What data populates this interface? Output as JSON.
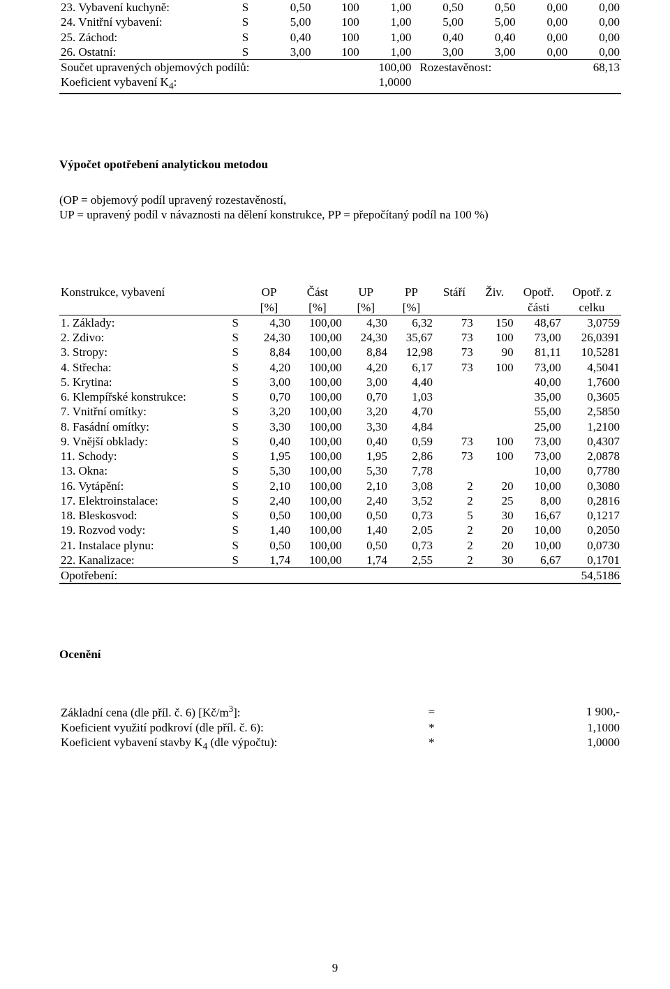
{
  "table1": {
    "rows": [
      {
        "label": "23. Vybavení kuchyně:",
        "code": "S",
        "c1": "0,50",
        "c2": "100",
        "c3": "1,00",
        "c4": "0,50",
        "c5": "0,50",
        "c6": "0,00",
        "c7": "0,00"
      },
      {
        "label": "24. Vnitřní vybavení:",
        "code": "S",
        "c1": "5,00",
        "c2": "100",
        "c3": "1,00",
        "c4": "5,00",
        "c5": "5,00",
        "c6": "0,00",
        "c7": "0,00"
      },
      {
        "label": "25. Záchod:",
        "code": "S",
        "c1": "0,40",
        "c2": "100",
        "c3": "1,00",
        "c4": "0,40",
        "c5": "0,40",
        "c6": "0,00",
        "c7": "0,00"
      },
      {
        "label": "26. Ostatní:",
        "code": "S",
        "c1": "3,00",
        "c2": "100",
        "c3": "1,00",
        "c4": "3,00",
        "c5": "3,00",
        "c6": "0,00",
        "c7": "0,00"
      }
    ],
    "sum_label": "Součet upravených objemových podílů:",
    "sum_val": "100,00",
    "roz_label": "Rozestavěnost:",
    "roz_val": "68,13",
    "k4_label": "Koeficient vybavení K4:",
    "k4_val": "1,0000"
  },
  "heading1": "Výpočet opotřebení analytickou metodou",
  "note_l1": "(OP = objemový podíl upravený rozestavěností,",
  "note_l2": "UP = upravený podíl v návaznosti na dělení konstrukce, PP = přepočítaný podíl na 100 %)",
  "table2": {
    "head": {
      "c0": "Konstrukce, vybavení",
      "c2": "OP",
      "c3": "Část",
      "c4": "UP",
      "c5": "PP",
      "c6": "Stáří",
      "c7": "Živ.",
      "c8": "Opotř.",
      "c9": "Opotř. z",
      "u2": "[%]",
      "u3": "[%]",
      "u4": "[%]",
      "u5": "[%]",
      "u8": "části",
      "u9": "celku"
    },
    "rows": [
      {
        "label": "1. Základy:",
        "code": "S",
        "op": "4,30",
        "cast": "100,00",
        "up": "4,30",
        "pp": "6,32",
        "stari": "73",
        "ziv": "150",
        "opc": "48,67",
        "opz": "3,0759"
      },
      {
        "label": "2. Zdivo:",
        "code": "S",
        "op": "24,30",
        "cast": "100,00",
        "up": "24,30",
        "pp": "35,67",
        "stari": "73",
        "ziv": "100",
        "opc": "73,00",
        "opz": "26,0391"
      },
      {
        "label": "3. Stropy:",
        "code": "S",
        "op": "8,84",
        "cast": "100,00",
        "up": "8,84",
        "pp": "12,98",
        "stari": "73",
        "ziv": "90",
        "opc": "81,11",
        "opz": "10,5281"
      },
      {
        "label": "4. Střecha:",
        "code": "S",
        "op": "4,20",
        "cast": "100,00",
        "up": "4,20",
        "pp": "6,17",
        "stari": "73",
        "ziv": "100",
        "opc": "73,00",
        "opz": "4,5041"
      },
      {
        "label": "5. Krytina:",
        "code": "S",
        "op": "3,00",
        "cast": "100,00",
        "up": "3,00",
        "pp": "4,40",
        "stari": "",
        "ziv": "",
        "opc": "40,00",
        "opz": "1,7600"
      },
      {
        "label": "6. Klempířské konstrukce:",
        "code": "S",
        "op": "0,70",
        "cast": "100,00",
        "up": "0,70",
        "pp": "1,03",
        "stari": "",
        "ziv": "",
        "opc": "35,00",
        "opz": "0,3605"
      },
      {
        "label": "7. Vnitřní omítky:",
        "code": "S",
        "op": "3,20",
        "cast": "100,00",
        "up": "3,20",
        "pp": "4,70",
        "stari": "",
        "ziv": "",
        "opc": "55,00",
        "opz": "2,5850"
      },
      {
        "label": "8. Fasádní omítky:",
        "code": "S",
        "op": "3,30",
        "cast": "100,00",
        "up": "3,30",
        "pp": "4,84",
        "stari": "",
        "ziv": "",
        "opc": "25,00",
        "opz": "1,2100"
      },
      {
        "label": "9. Vnější obklady:",
        "code": "S",
        "op": "0,40",
        "cast": "100,00",
        "up": "0,40",
        "pp": "0,59",
        "stari": "73",
        "ziv": "100",
        "opc": "73,00",
        "opz": "0,4307"
      },
      {
        "label": "11. Schody:",
        "code": "S",
        "op": "1,95",
        "cast": "100,00",
        "up": "1,95",
        "pp": "2,86",
        "stari": "73",
        "ziv": "100",
        "opc": "73,00",
        "opz": "2,0878"
      },
      {
        "label": "13. Okna:",
        "code": "S",
        "op": "5,30",
        "cast": "100,00",
        "up": "5,30",
        "pp": "7,78",
        "stari": "",
        "ziv": "",
        "opc": "10,00",
        "opz": "0,7780"
      },
      {
        "label": "16. Vytápění:",
        "code": "S",
        "op": "2,10",
        "cast": "100,00",
        "up": "2,10",
        "pp": "3,08",
        "stari": "2",
        "ziv": "20",
        "opc": "10,00",
        "opz": "0,3080"
      },
      {
        "label": "17. Elektroinstalace:",
        "code": "S",
        "op": "2,40",
        "cast": "100,00",
        "up": "2,40",
        "pp": "3,52",
        "stari": "2",
        "ziv": "25",
        "opc": "8,00",
        "opz": "0,2816"
      },
      {
        "label": "18. Bleskosvod:",
        "code": "S",
        "op": "0,50",
        "cast": "100,00",
        "up": "0,50",
        "pp": "0,73",
        "stari": "5",
        "ziv": "30",
        "opc": "16,67",
        "opz": "0,1217"
      },
      {
        "label": "19. Rozvod vody:",
        "code": "S",
        "op": "1,40",
        "cast": "100,00",
        "up": "1,40",
        "pp": "2,05",
        "stari": "2",
        "ziv": "20",
        "opc": "10,00",
        "opz": "0,2050"
      },
      {
        "label": "21. Instalace plynu:",
        "code": "S",
        "op": "0,50",
        "cast": "100,00",
        "up": "0,50",
        "pp": "0,73",
        "stari": "2",
        "ziv": "20",
        "opc": "10,00",
        "opz": "0,0730"
      },
      {
        "label": "22. Kanalizace:",
        "code": "S",
        "op": "1,74",
        "cast": "100,00",
        "up": "1,74",
        "pp": "2,55",
        "stari": "2",
        "ziv": "30",
        "opc": "6,67",
        "opz": "0,1701"
      }
    ],
    "total_label": "Opotřebení:",
    "total_val": "54,5186"
  },
  "heading2": "Ocenění",
  "table3": {
    "rows": [
      {
        "label": "Základní cena (dle příl. č. 6) [Kč/m3]:",
        "op": "=",
        "val": "1 900,-"
      },
      {
        "label": "Koeficient využití podkroví (dle příl. č. 6):",
        "op": "*",
        "val": "1,1000"
      },
      {
        "label": "Koeficient vybavení stavby K4 (dle výpočtu):",
        "op": "*",
        "val": "1,0000"
      }
    ]
  },
  "pagenum": "9"
}
